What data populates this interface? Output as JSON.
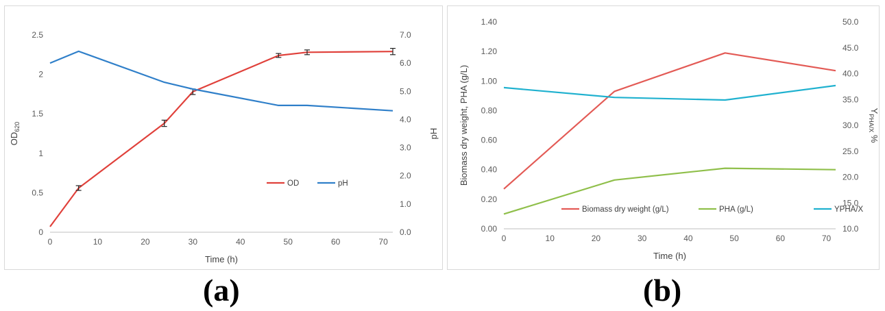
{
  "chart_data": [
    {
      "type": "line",
      "panel": "a",
      "xlabel": "Time (h)",
      "ylabel": "OD",
      "ylabel_sub": "620",
      "y2label": "pH",
      "xlim": [
        0,
        72
      ],
      "xticks": [
        "0",
        "10",
        "20",
        "30",
        "40",
        "50",
        "60",
        "70"
      ],
      "ylim": [
        0,
        2.5
      ],
      "yticks": [
        "0",
        "0.5",
        "1",
        "1.5",
        "2",
        "2.5"
      ],
      "y2lim": [
        0,
        7
      ],
      "y2ticks": [
        "0.0",
        "1.0",
        "2.0",
        "3.0",
        "4.0",
        "5.0",
        "6.0",
        "7.0"
      ],
      "grid": false,
      "legend": "bottom-right",
      "series": [
        {
          "name": "OD",
          "axis": "left",
          "color": "#e0413b",
          "x": [
            0,
            6,
            24,
            30,
            48,
            54,
            72
          ],
          "y": [
            0.07,
            0.56,
            1.38,
            1.78,
            2.24,
            2.28,
            2.29
          ],
          "error": [
            0.0,
            0.03,
            0.04,
            0.035,
            0.025,
            0.03,
            0.04
          ]
        },
        {
          "name": "pH",
          "axis": "right",
          "color": "#2f7fc9",
          "x": [
            0,
            6,
            24,
            30,
            48,
            54,
            72
          ],
          "y": [
            6.0,
            6.42,
            5.32,
            5.08,
            4.5,
            4.5,
            4.31
          ]
        }
      ]
    },
    {
      "type": "line",
      "panel": "b",
      "xlabel": "Time (h)",
      "ylabel": "Biomass dry weight, PHA (g/L)",
      "y2label": "Y",
      "y2label_sub": "PHA/X",
      "y2label_suffix": " %",
      "xlim": [
        0,
        72
      ],
      "xticks": [
        "0",
        "10",
        "20",
        "30",
        "40",
        "50",
        "60",
        "70"
      ],
      "ylim": [
        0,
        1.4
      ],
      "yticks": [
        "0.00",
        "0.20",
        "0.40",
        "0.60",
        "0.80",
        "1.00",
        "1.20",
        "1.40"
      ],
      "y2lim": [
        10,
        50
      ],
      "y2ticks": [
        "10.0",
        "15.0",
        "20.0",
        "25.0",
        "30.0",
        "35.0",
        "40.0",
        "45.0",
        "50.0"
      ],
      "grid": false,
      "legend": "bottom",
      "series": [
        {
          "name": "Biomass dry weight (g/L)",
          "axis": "left",
          "color": "#e35a55",
          "x": [
            0,
            24,
            48,
            72
          ],
          "y": [
            0.27,
            0.93,
            1.19,
            1.07
          ]
        },
        {
          "name": "PHA (g/L)",
          "axis": "left",
          "color": "#8fbf4a",
          "x": [
            0,
            24,
            48,
            72
          ],
          "y": [
            0.1,
            0.33,
            0.41,
            0.4
          ]
        },
        {
          "name": "YPHA/X",
          "axis": "right",
          "color": "#1fb1cf",
          "x": [
            0,
            24,
            48,
            72
          ],
          "y": [
            37.3,
            35.4,
            34.9,
            37.7
          ]
        }
      ]
    }
  ],
  "panel_labels": {
    "a": "(a)",
    "b": "(b)"
  }
}
